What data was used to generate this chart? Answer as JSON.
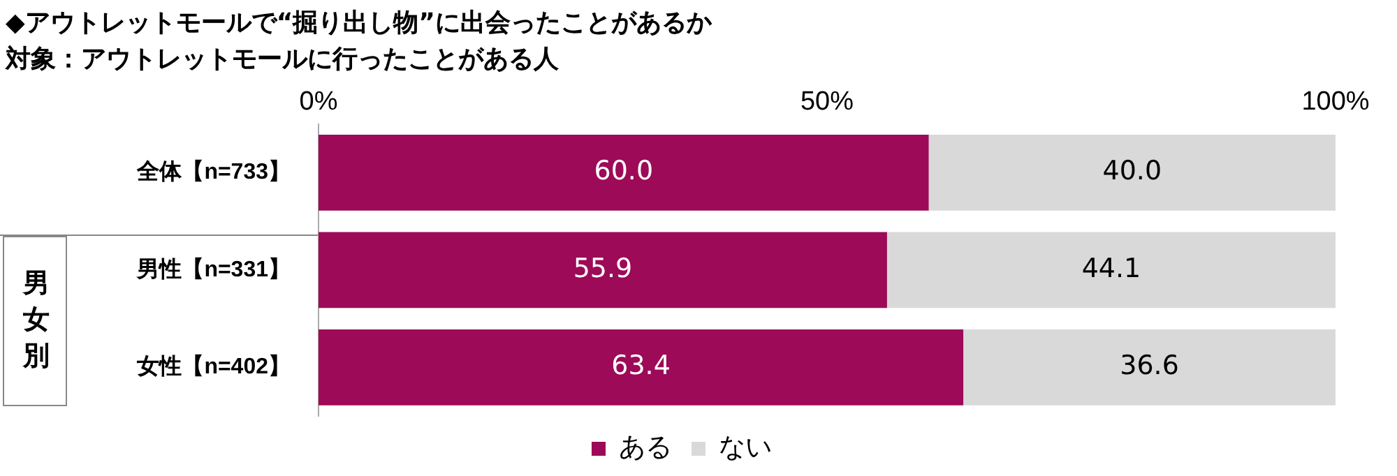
{
  "chart_data": {
    "type": "bar",
    "orientation": "horizontal",
    "stacked": true,
    "title": "◆アウトレットモールで“掘り出し物”に出会ったことがあるか",
    "subtitle": "対象：アウトレットモールに行ったことがある人",
    "categories": [
      "全体【n=733】",
      "男性【n=331】",
      "女性【n=402】"
    ],
    "series": [
      {
        "name": "ある",
        "color": "#9c0a58",
        "values": [
          60.0,
          55.9,
          63.4
        ],
        "value_labels": [
          "60.0",
          "55.9",
          "63.4"
        ]
      },
      {
        "name": "ない",
        "color": "#d9d9d9",
        "values": [
          40.0,
          44.1,
          36.6
        ],
        "value_labels": [
          "40.0",
          "44.1",
          "36.6"
        ]
      }
    ],
    "xlim": [
      0,
      100
    ],
    "xticks": [
      {
        "value": 0,
        "label": "0%"
      },
      {
        "value": 50,
        "label": "50%"
      },
      {
        "value": 100,
        "label": "100%"
      }
    ],
    "grid": false,
    "legend": "bottom",
    "annotations": [
      "男女別"
    ]
  }
}
